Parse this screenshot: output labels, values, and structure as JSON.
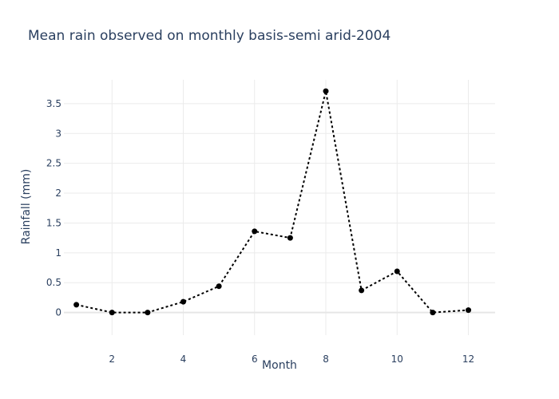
{
  "chart_data": {
    "type": "line",
    "title": "Mean rain observed on monthly basis-semi arid-2004",
    "xlabel": "Month",
    "ylabel": "Rainfall (mm)",
    "xlim": [
      0.65,
      12.75
    ],
    "ylim": [
      -0.38,
      3.9
    ],
    "xticks": [
      2,
      4,
      6,
      8,
      10,
      12
    ],
    "yticks": [
      0,
      0.5,
      1,
      1.5,
      2,
      2.5,
      3,
      3.5
    ],
    "grid": true,
    "line_style": "dotted",
    "color": "#000000",
    "series": [
      {
        "x": [
          1,
          2,
          3,
          4,
          5,
          6,
          7,
          8,
          9,
          10,
          11,
          12
        ],
        "values": [
          0.13,
          0.0,
          0.0,
          0.18,
          0.44,
          1.36,
          1.25,
          3.71,
          0.37,
          0.69,
          0.0,
          0.04
        ]
      }
    ]
  }
}
